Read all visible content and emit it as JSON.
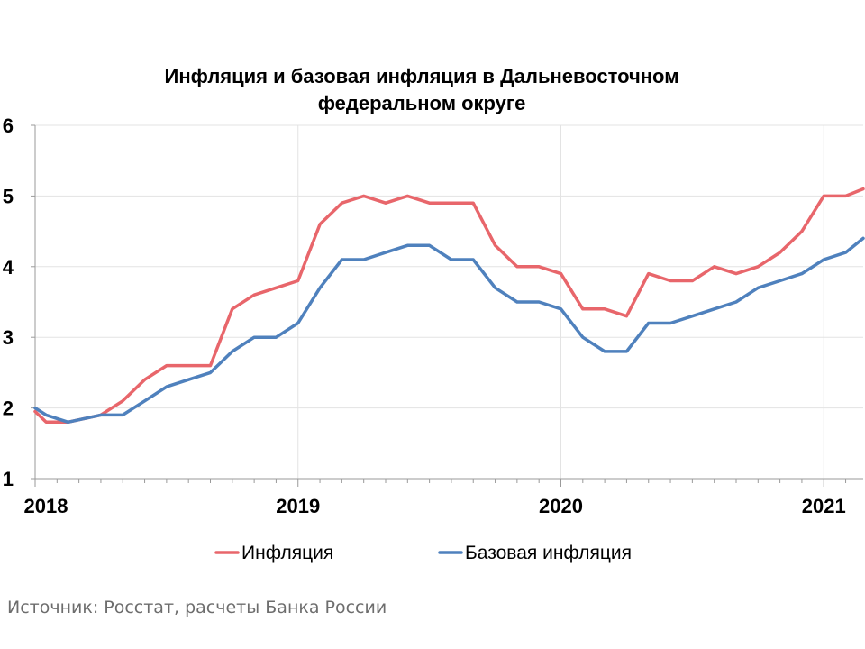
{
  "chart_data": {
    "type": "line",
    "title": [
      "Инфляция и базовая инфляция в Дальневосточном",
      "федеральном округе"
    ],
    "xlabel": "",
    "ylabel": "",
    "ylim": [
      1,
      6
    ],
    "yticks": [
      1,
      2,
      3,
      4,
      5,
      6
    ],
    "xlim": [
      0,
      37.8
    ],
    "xticks": [
      {
        "label": "2018",
        "x": 0
      },
      {
        "label": "2019",
        "x": 12
      },
      {
        "label": "2020",
        "x": 24
      },
      {
        "label": "2021",
        "x": 36
      }
    ],
    "x": [
      0,
      1,
      2,
      3,
      4,
      5,
      6,
      7,
      8,
      9,
      10,
      11,
      12,
      13,
      14,
      15,
      16,
      17,
      18,
      19,
      20,
      21,
      22,
      23,
      24,
      25,
      26,
      27,
      28,
      29,
      30,
      31,
      32,
      33,
      34,
      35,
      36,
      37,
      38
    ],
    "series": [
      {
        "name": "Инфляция",
        "color": "#e8666b",
        "x": [
          0,
          0.5,
          1.5,
          3,
          4,
          5,
          6,
          7,
          8,
          9,
          10,
          11,
          12,
          13,
          14,
          15,
          16,
          17,
          18,
          19,
          20,
          21,
          22,
          23,
          24,
          25,
          26,
          27,
          28,
          29,
          30,
          31,
          32,
          33,
          34,
          35,
          36,
          37,
          37.8
        ],
        "values": [
          1.95,
          1.8,
          1.8,
          1.9,
          2.1,
          2.4,
          2.6,
          2.6,
          2.6,
          3.4,
          3.6,
          3.7,
          3.8,
          4.6,
          4.9,
          5.0,
          4.9,
          5.0,
          4.9,
          4.9,
          4.9,
          4.3,
          4.0,
          4.0,
          3.9,
          3.4,
          3.4,
          3.3,
          3.9,
          3.8,
          3.8,
          4.0,
          3.9,
          4.0,
          4.2,
          4.5,
          5.0,
          5.0,
          5.1
        ]
      },
      {
        "name": "Базовая инфляция",
        "color": "#4f81bd",
        "x": [
          0,
          0.5,
          1.5,
          3,
          4,
          5,
          6,
          7,
          8,
          9,
          10,
          11,
          12,
          13,
          14,
          15,
          16,
          17,
          18,
          19,
          20,
          21,
          22,
          23,
          24,
          25,
          26,
          27,
          28,
          29,
          30,
          31,
          32,
          33,
          34,
          35,
          36,
          37,
          37.8
        ],
        "values": [
          2.0,
          1.9,
          1.8,
          1.9,
          1.9,
          2.1,
          2.3,
          2.4,
          2.5,
          2.8,
          3.0,
          3.0,
          3.2,
          3.7,
          4.1,
          4.1,
          4.2,
          4.3,
          4.3,
          4.1,
          4.1,
          3.7,
          3.5,
          3.5,
          3.4,
          3.0,
          2.8,
          2.8,
          3.2,
          3.2,
          3.3,
          3.4,
          3.5,
          3.7,
          3.8,
          3.9,
          4.1,
          4.2,
          4.4
        ]
      }
    ],
    "legend_position": "bottom"
  },
  "source_text": "Источник: Росстат, расчеты Банка России"
}
